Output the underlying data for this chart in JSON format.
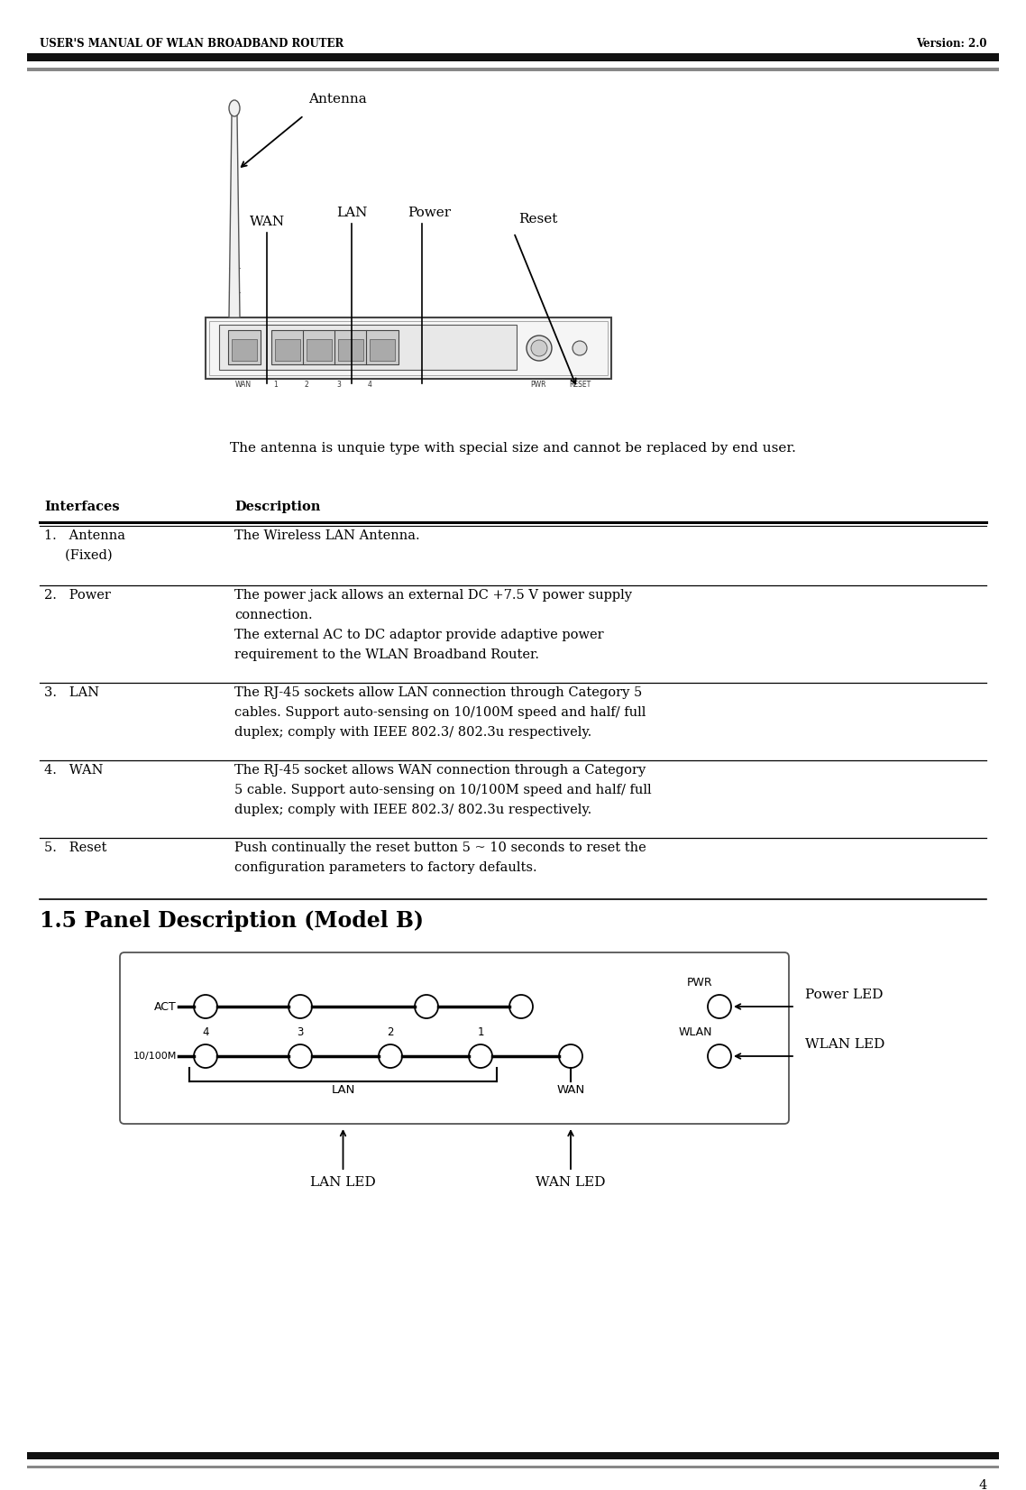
{
  "header_left": "USER'S MANUAL OF WLAN BROADBAND ROUTER",
  "header_right": "Version: 2.0",
  "footer_page": "4",
  "antenna_label": "Antenna",
  "wan_label": "WAN",
  "lan_label": "LAN",
  "power_label": "Power",
  "reset_label": "Reset",
  "intro_text": "The antenna is unquie type with special size and cannot be replaced by end user.",
  "table_header_col1": "Interfaces",
  "table_header_col2": "Description",
  "table_rows": [
    {
      "interface": [
        "1.   Antenna",
        "     (Fixed)"
      ],
      "description": [
        "The Wireless LAN Antenna."
      ]
    },
    {
      "interface": [
        "2.   Power"
      ],
      "description": [
        "The power jack allows an external DC +7.5 V power supply",
        "connection.",
        "The external AC to DC adaptor provide adaptive power",
        "requirement to the WLAN Broadband Router."
      ]
    },
    {
      "interface": [
        "3.   LAN"
      ],
      "description": [
        "The RJ-45 sockets allow LAN connection through Category 5",
        "cables. Support auto-sensing on 10/100M speed and half/ full",
        "duplex; comply with IEEE 802.3/ 802.3u respectively."
      ]
    },
    {
      "interface": [
        "4.   WAN"
      ],
      "description": [
        "The RJ-45 socket allows WAN connection through a Category",
        "5 cable. Support auto-sensing on 10/100M speed and half/ full",
        "duplex; comply with IEEE 802.3/ 802.3u respectively."
      ]
    },
    {
      "interface": [
        "5.   Reset"
      ],
      "description": [
        "Push continually the reset button 5 ~ 10 seconds to reset the",
        "configuration parameters to factory defaults."
      ]
    }
  ],
  "section_title": "1.5 Panel Description (Model B)",
  "panel_labels": {
    "ACT": "ACT",
    "10_100M": "10/100M",
    "LAN": "LAN",
    "WAN": "WAN",
    "PWR": "PWR",
    "WLAN": "WLAN",
    "LAN_LED": "LAN LED",
    "WAN_LED": "WAN LED",
    "Power_LED": "Power LED",
    "WLAN_LED": "WLAN LED"
  },
  "bg_color": "#ffffff",
  "text_color": "#000000"
}
